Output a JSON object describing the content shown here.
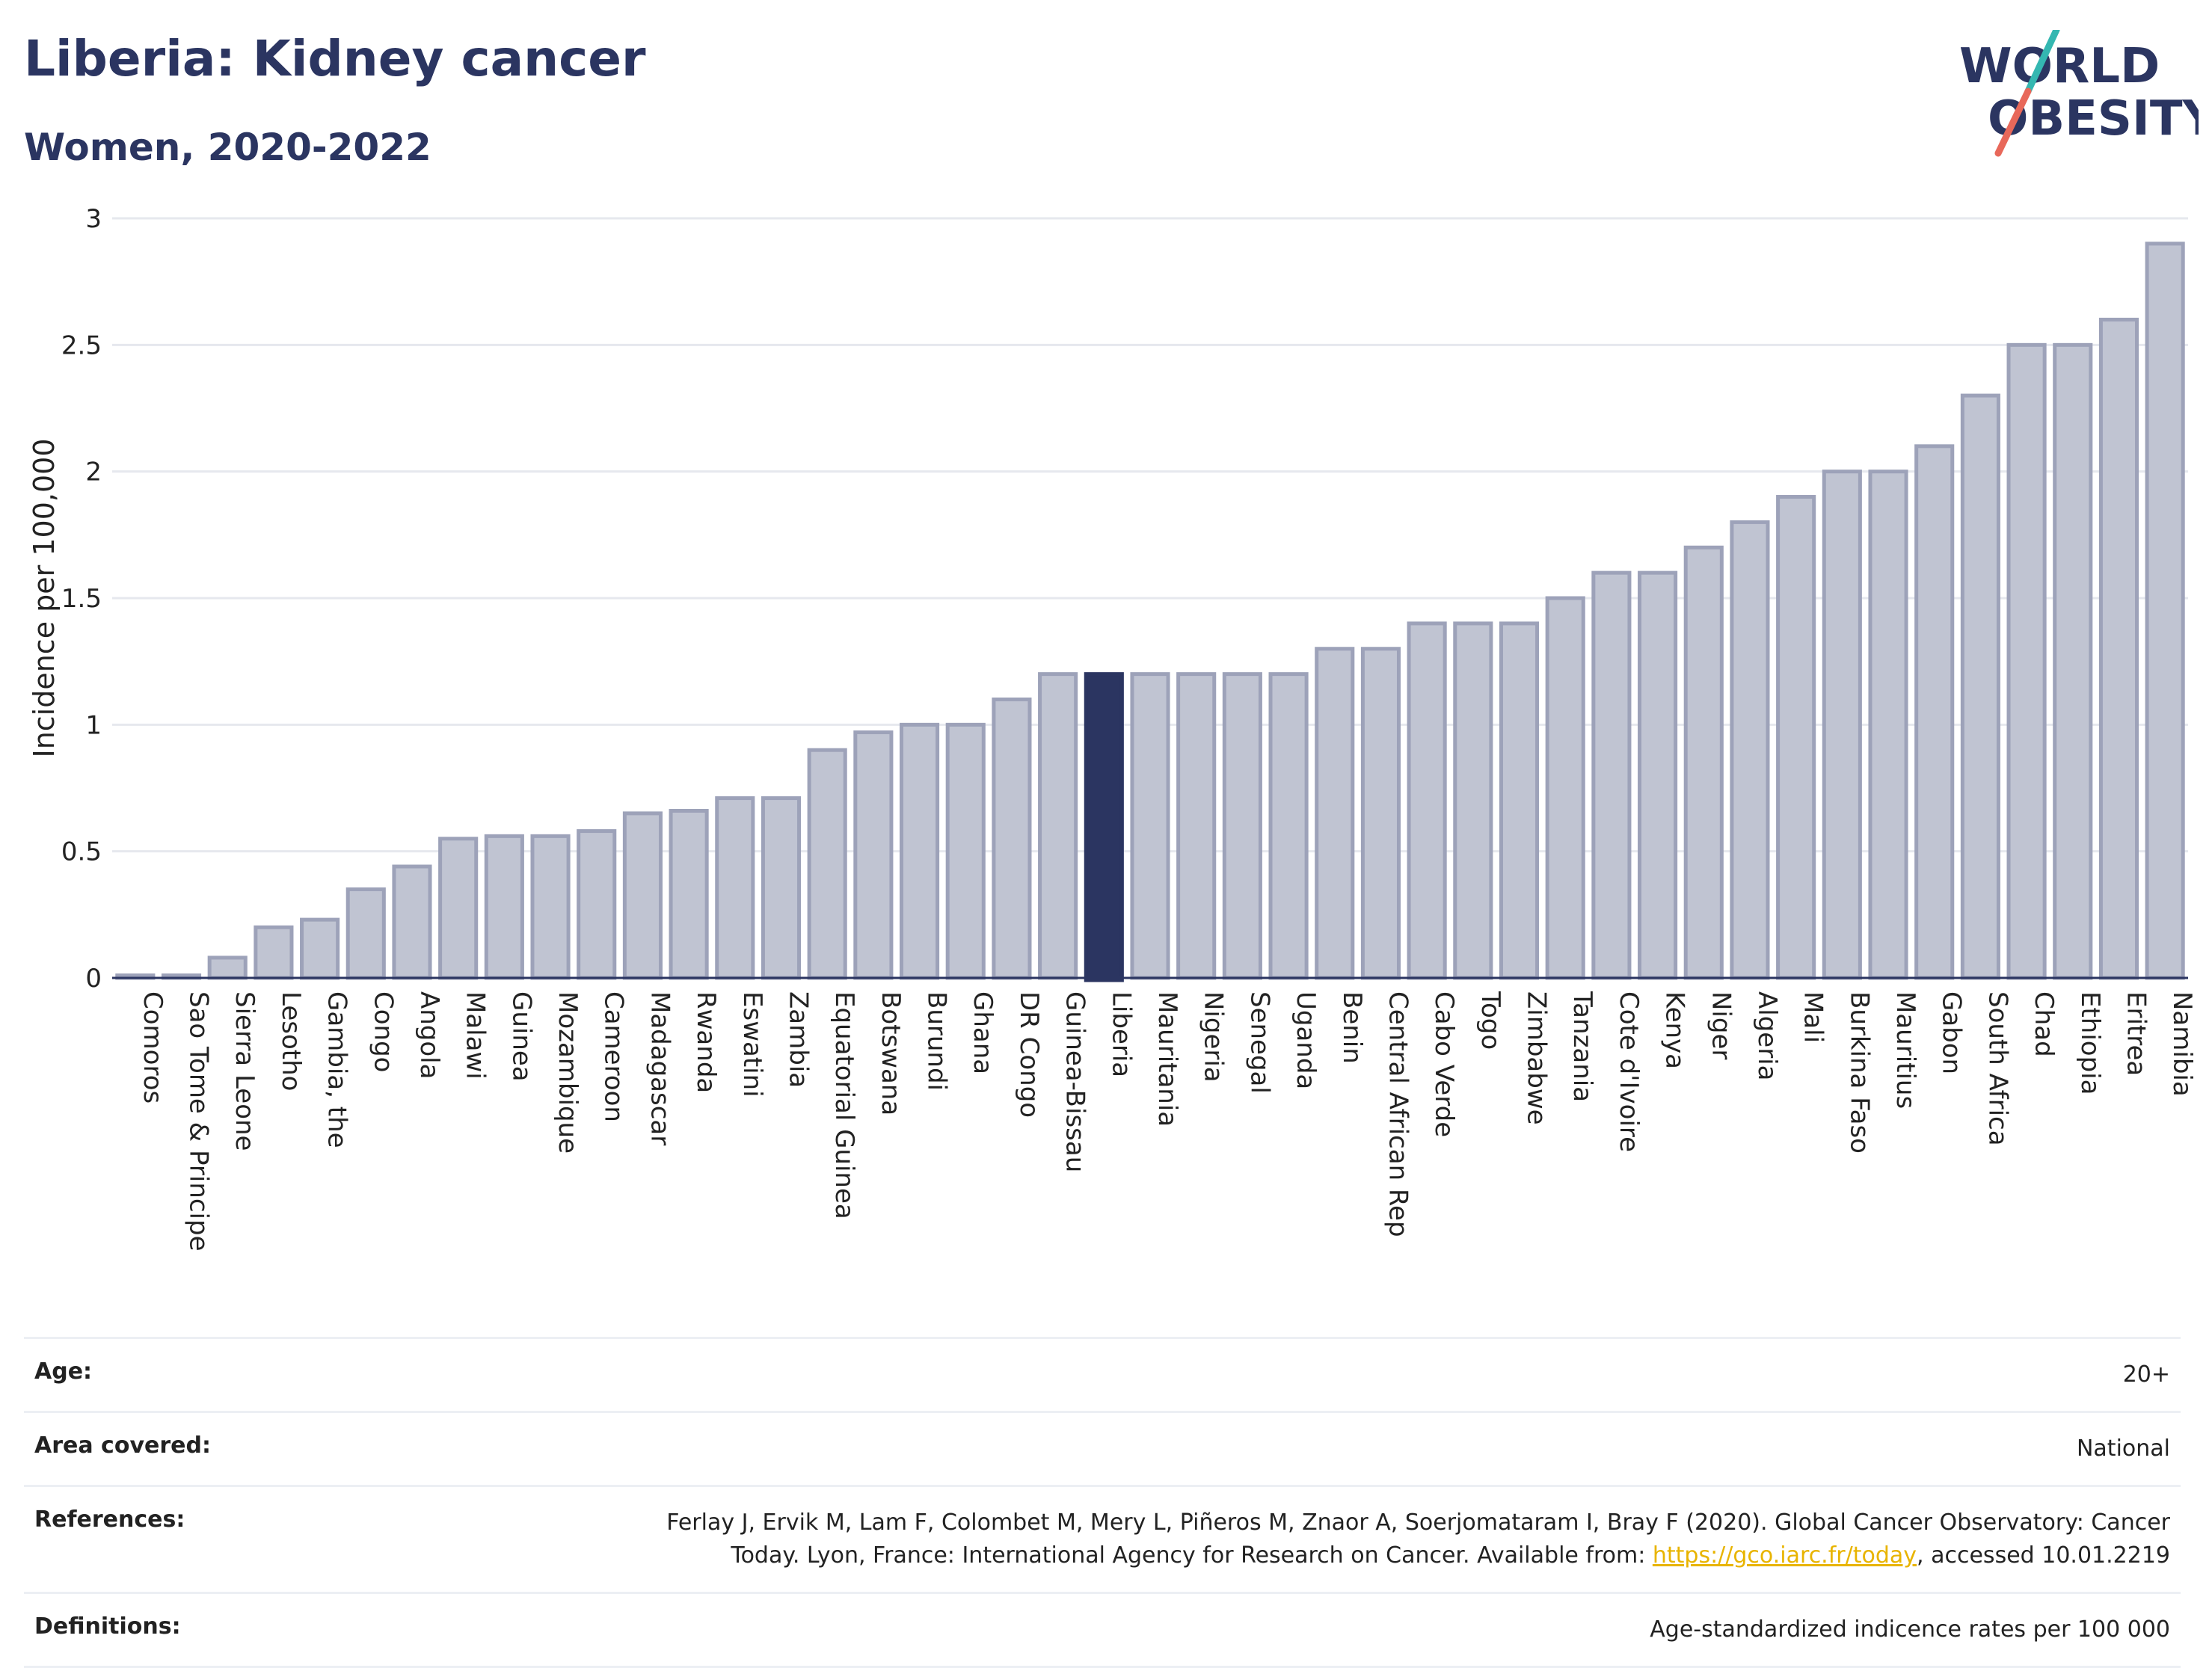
{
  "header": {
    "title": "Liberia: Kidney cancer",
    "subtitle": "Women, 2020-2022"
  },
  "logo": {
    "line1": "WORLD",
    "line2": "OBESITY",
    "slash_color_top": "#34b7b1",
    "slash_color_bottom": "#e8685a"
  },
  "colors": {
    "bar_fill": "#c0c4d2",
    "bar_stroke": "#9da2b9",
    "highlight": "#2b3561",
    "grid": "#e6e8ee"
  },
  "chart_data": {
    "type": "bar",
    "ylabel": "Incidence per 100,000",
    "ylim": [
      0,
      3
    ],
    "yticks": [
      0,
      0.5,
      1,
      1.5,
      2,
      2.5,
      3
    ],
    "ytick_labels": [
      "0",
      "0.5",
      "1",
      "1.5",
      "2",
      "2.5",
      "3"
    ],
    "grid": true,
    "highlight": "Liberia",
    "categories": [
      "Comoros",
      "Sao Tome & Principe",
      "Sierra Leone",
      "Lesotho",
      "Gambia, the",
      "Congo",
      "Angola",
      "Malawi",
      "Guinea",
      "Mozambique",
      "Cameroon",
      "Madagascar",
      "Rwanda",
      "Eswatini",
      "Zambia",
      "Equatorial Guinea",
      "Botswana",
      "Burundi",
      "Ghana",
      "DR Congo",
      "Guinea-Bissau",
      "Liberia",
      "Mauritania",
      "Nigeria",
      "Senegal",
      "Uganda",
      "Benin",
      "Central African Rep",
      "Cabo Verde",
      "Togo",
      "Zimbabwe",
      "Tanzania",
      "Cote d'Ivoire",
      "Kenya",
      "Niger",
      "Algeria",
      "Mali",
      "Burkina Faso",
      "Mauritius",
      "Gabon",
      "South Africa",
      "Chad",
      "Ethiopia",
      "Eritrea",
      "Namibia"
    ],
    "values": [
      0.01,
      0.01,
      0.08,
      0.2,
      0.23,
      0.35,
      0.44,
      0.55,
      0.56,
      0.56,
      0.58,
      0.65,
      0.66,
      0.71,
      0.71,
      0.9,
      0.97,
      1.0,
      1.0,
      1.1,
      1.2,
      1.2,
      1.2,
      1.2,
      1.2,
      1.2,
      1.3,
      1.3,
      1.4,
      1.4,
      1.4,
      1.5,
      1.6,
      1.6,
      1.7,
      1.8,
      1.9,
      2.0,
      2.0,
      2.1,
      2.3,
      2.5,
      2.5,
      2.6,
      2.9
    ]
  },
  "info": {
    "age_label": "Age:",
    "age_value": "20+",
    "area_label": "Area covered:",
    "area_value": "National",
    "references_label": "References:",
    "references_text": "Ferlay J, Ervik M, Lam F, Colombet M, Mery L, Piñeros M, Znaor A, Soerjomataram I, Bray F (2020). Global Cancer Observatory: Cancer Today. Lyon, France: International Agency for Research on Cancer. Available from: ",
    "references_link": "https://gco.iarc.fr/today",
    "references_suffix": ", accessed 10.01.2219",
    "definitions_label": "Definitions:",
    "definitions_value": "Age-standardized indicence rates per 100 000"
  }
}
